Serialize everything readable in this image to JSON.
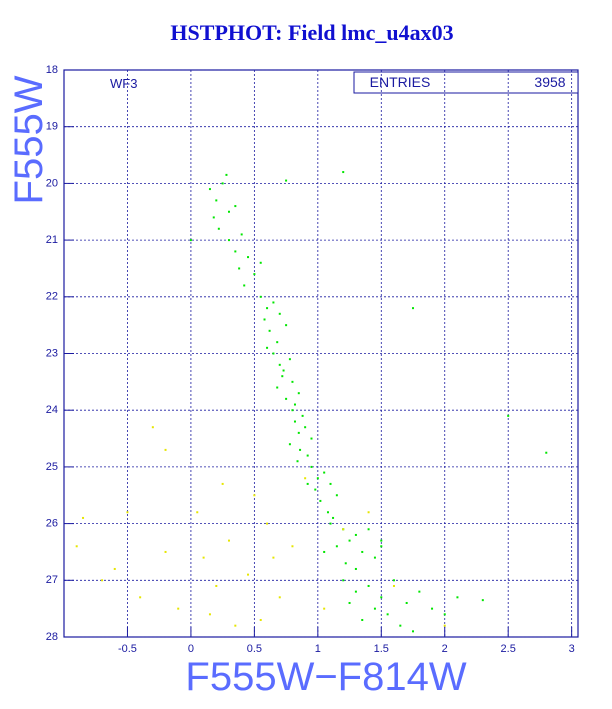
{
  "chart_data": {
    "type": "scatter",
    "title": "HSTPHOT: Field lmc_u4ax03",
    "x_label": "F555W−F814W",
    "y_label": "F555W",
    "annotation": "WF3",
    "stats": {
      "label": "ENTRIES",
      "value": "3958"
    },
    "xlim": [
      -1,
      3.05
    ],
    "ylim": [
      28,
      18
    ],
    "grid": true,
    "xticks": [
      -0.5,
      0,
      0.5,
      1,
      1.5,
      2,
      2.5,
      3
    ],
    "yticks": [
      18,
      19,
      20,
      21,
      22,
      23,
      24,
      25,
      26,
      27,
      28
    ],
    "series": [
      {
        "color": "#00e600",
        "x": [
          0.15,
          0.2,
          0.25,
          0.3,
          0.18,
          0.35,
          0.28,
          0.22,
          0.3,
          0.35,
          0.4,
          0.45,
          0.38,
          0.5,
          0.42,
          0.55,
          0.55,
          0.6,
          0.58,
          0.65,
          0.62,
          0.68,
          0.7,
          0.6,
          0.75,
          0.65,
          0.7,
          0.72,
          0.68,
          0.78,
          0.75,
          0.8,
          0.82,
          0.73,
          0.85,
          0.8,
          0.82,
          0.85,
          0.88,
          0.78,
          0.9,
          0.92,
          0.86,
          0.95,
          0.84,
          0.95,
          1.0,
          0.98,
          1.05,
          1.02,
          1.1,
          1.08,
          1.15,
          0.92,
          1.12,
          1.1,
          1.2,
          1.25,
          1.15,
          1.3,
          1.35,
          1.4,
          1.22,
          1.45,
          1.3,
          1.05,
          1.5,
          1.2,
          1.3,
          1.4,
          1.5,
          1.6,
          1.45,
          1.7,
          1.55,
          1.8,
          1.35,
          1.9,
          1.65,
          2.0,
          1.25,
          2.1,
          1.75,
          1.2,
          0.75,
          2.8,
          2.5,
          1.75,
          0.0,
          1.5,
          2.3
        ],
        "y": [
          20.1,
          20.3,
          20.0,
          20.5,
          20.6,
          20.4,
          19.85,
          20.8,
          21.0,
          21.2,
          20.9,
          21.3,
          21.5,
          21.6,
          21.8,
          21.4,
          22.0,
          22.2,
          22.4,
          22.1,
          22.6,
          22.8,
          22.3,
          22.9,
          22.5,
          23.0,
          23.2,
          23.4,
          23.6,
          23.1,
          23.8,
          23.5,
          23.9,
          23.3,
          23.7,
          24.0,
          24.2,
          24.4,
          24.1,
          24.6,
          24.3,
          24.8,
          24.7,
          24.5,
          24.9,
          25.0,
          25.2,
          25.4,
          25.1,
          25.6,
          25.3,
          25.8,
          25.5,
          25.3,
          25.9,
          26.0,
          26.1,
          26.3,
          26.4,
          26.2,
          26.5,
          26.1,
          26.7,
          26.6,
          26.8,
          26.5,
          26.4,
          27.0,
          27.2,
          27.1,
          27.3,
          27.0,
          27.5,
          27.4,
          27.6,
          27.2,
          27.7,
          27.5,
          27.8,
          27.6,
          27.4,
          27.3,
          27.9,
          19.8,
          19.95,
          24.75,
          24.1,
          22.2,
          21.0,
          26.3,
          27.35
        ]
      },
      {
        "color": "#e6e600",
        "x": [
          -0.85,
          -0.6,
          -0.4,
          -0.2,
          0.1,
          0.2,
          0.3,
          0.15,
          0.45,
          0.5,
          0.6,
          0.7,
          0.8,
          -0.7,
          -0.5,
          -0.3,
          0.05,
          0.35,
          0.9,
          1.05,
          1.2,
          -0.9,
          -0.1,
          0.55,
          0.25,
          1.4,
          -0.2,
          0.65,
          2.0,
          1.6
        ],
        "y": [
          25.9,
          26.8,
          27.3,
          26.5,
          26.6,
          27.1,
          26.3,
          27.6,
          26.9,
          25.5,
          26.0,
          27.3,
          26.4,
          27.0,
          25.8,
          24.3,
          25.8,
          27.8,
          25.2,
          27.5,
          26.1,
          26.4,
          27.5,
          27.7,
          25.3,
          25.8,
          24.7,
          26.6,
          27.8,
          27.1
        ]
      }
    ]
  }
}
